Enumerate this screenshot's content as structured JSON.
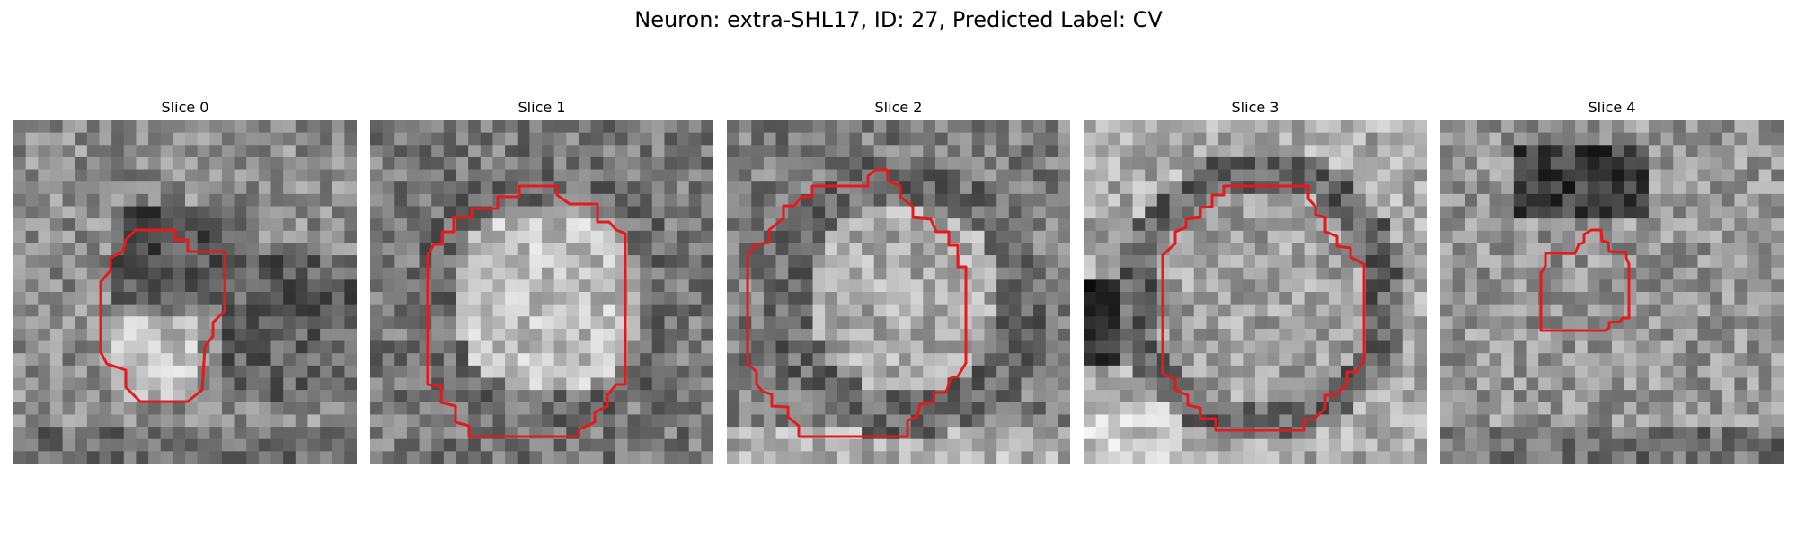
{
  "figure": {
    "title": "Neuron: extra-SHL17, ID: 27, Predicted Label: CV"
  },
  "contour_color": "#e41a1c",
  "panels": [
    {
      "title": "Slice 0"
    },
    {
      "title": "Slice 1"
    },
    {
      "title": "Slice 2"
    },
    {
      "title": "Slice 3"
    },
    {
      "title": "Slice 4"
    }
  ]
}
